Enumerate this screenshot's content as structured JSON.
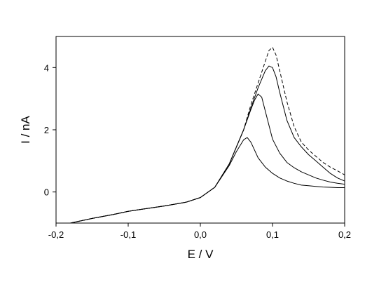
{
  "chart_data": {
    "type": "line",
    "xlabel": "E / V",
    "ylabel": "I / nA",
    "xlim": [
      -0.2,
      0.2
    ],
    "ylim": [
      -1.0,
      5.0
    ],
    "grid": false,
    "x_ticks": [
      -0.2,
      -0.1,
      0.0,
      0.1,
      0.2
    ],
    "x_tick_labels": [
      "-0,2",
      "-0,1",
      "0,0",
      "0,1",
      "0,2"
    ],
    "y_ticks": [
      0,
      2,
      4
    ],
    "y_tick_labels": [
      "0",
      "2",
      "4"
    ],
    "series": [
      {
        "style": "dashed",
        "x": [
          -0.18,
          -0.15,
          -0.12,
          -0.1,
          -0.08,
          -0.05,
          -0.02,
          0.0,
          0.02,
          0.04,
          0.06,
          0.07,
          0.08,
          0.09,
          0.095,
          0.1,
          0.105,
          0.11,
          0.12,
          0.13,
          0.14,
          0.15,
          0.16,
          0.17,
          0.18,
          0.19,
          0.2
        ],
        "y": [
          -1.0,
          -0.85,
          -0.72,
          -0.62,
          -0.55,
          -0.45,
          -0.33,
          -0.18,
          0.15,
          0.9,
          2.0,
          2.8,
          3.5,
          4.2,
          4.55,
          4.65,
          4.4,
          3.9,
          2.9,
          2.1,
          1.6,
          1.35,
          1.15,
          0.95,
          0.8,
          0.68,
          0.55
        ]
      },
      {
        "style": "solid",
        "x": [
          -0.18,
          -0.15,
          -0.12,
          -0.1,
          -0.08,
          -0.05,
          -0.02,
          0.0,
          0.02,
          0.04,
          0.06,
          0.07,
          0.08,
          0.09,
          0.095,
          0.1,
          0.105,
          0.11,
          0.12,
          0.13,
          0.14,
          0.15,
          0.16,
          0.17,
          0.18,
          0.19,
          0.2
        ],
        "y": [
          -1.0,
          -0.85,
          -0.72,
          -0.62,
          -0.55,
          -0.45,
          -0.33,
          -0.18,
          0.15,
          0.9,
          2.0,
          2.7,
          3.35,
          3.9,
          4.05,
          4.0,
          3.7,
          3.2,
          2.3,
          1.75,
          1.45,
          1.2,
          1.0,
          0.8,
          0.6,
          0.45,
          0.35
        ]
      },
      {
        "style": "solid",
        "x": [
          -0.18,
          -0.15,
          -0.12,
          -0.1,
          -0.08,
          -0.05,
          -0.02,
          0.0,
          0.02,
          0.04,
          0.06,
          0.07,
          0.075,
          0.08,
          0.085,
          0.09,
          0.1,
          0.11,
          0.12,
          0.13,
          0.14,
          0.15,
          0.16,
          0.17,
          0.18,
          0.19,
          0.2
        ],
        "y": [
          -1.0,
          -0.85,
          -0.72,
          -0.62,
          -0.55,
          -0.45,
          -0.33,
          -0.18,
          0.15,
          0.9,
          2.0,
          2.65,
          2.95,
          3.15,
          3.05,
          2.6,
          1.7,
          1.25,
          0.95,
          0.78,
          0.65,
          0.55,
          0.45,
          0.38,
          0.32,
          0.28,
          0.25
        ]
      },
      {
        "style": "solid",
        "x": [
          -0.18,
          -0.15,
          -0.12,
          -0.1,
          -0.08,
          -0.05,
          -0.02,
          0.0,
          0.02,
          0.04,
          0.05,
          0.06,
          0.065,
          0.07,
          0.075,
          0.08,
          0.09,
          0.1,
          0.11,
          0.12,
          0.13,
          0.14,
          0.15,
          0.16,
          0.17,
          0.18,
          0.19,
          0.2
        ],
        "y": [
          -1.0,
          -0.85,
          -0.72,
          -0.62,
          -0.55,
          -0.45,
          -0.33,
          -0.18,
          0.15,
          0.85,
          1.3,
          1.68,
          1.75,
          1.6,
          1.35,
          1.1,
          0.8,
          0.6,
          0.45,
          0.35,
          0.28,
          0.22,
          0.2,
          0.18,
          0.16,
          0.15,
          0.14,
          0.14
        ]
      }
    ]
  }
}
